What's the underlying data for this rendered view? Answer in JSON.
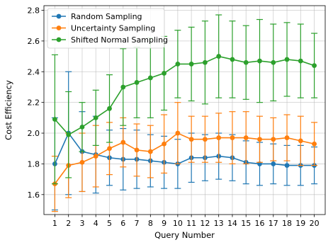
{
  "chart_data": {
    "type": "line",
    "title": "",
    "xlabel": "Query Number",
    "ylabel": "Cost Efficiency",
    "x": [
      1,
      2,
      3,
      4,
      5,
      6,
      7,
      8,
      9,
      10,
      11,
      12,
      13,
      14,
      15,
      16,
      17,
      18,
      19,
      20
    ],
    "xlim": [
      0.2,
      20.8
    ],
    "ylim": [
      1.47,
      2.83
    ],
    "yticks": [
      1.6,
      1.8,
      2.0,
      2.2,
      2.4,
      2.6,
      2.8
    ],
    "ytick_labels": [
      "1.6",
      "1.8",
      "2.0",
      "2.2",
      "2.4",
      "2.6",
      "2.8"
    ],
    "xtick_labels": [
      "1",
      "2",
      "3",
      "4",
      "5",
      "6",
      "7",
      "8",
      "9",
      "10",
      "11",
      "12",
      "13",
      "14",
      "15",
      "16",
      "17",
      "18",
      "19",
      "20"
    ],
    "grid": true,
    "legend_position": "top-left",
    "error_bars": true,
    "series": [
      {
        "name": "Random Sampling",
        "color": "#1f77b4",
        "values": [
          1.8,
          2.0,
          1.88,
          1.86,
          1.84,
          1.83,
          1.83,
          1.82,
          1.81,
          1.8,
          1.84,
          1.84,
          1.85,
          1.84,
          1.81,
          1.8,
          1.8,
          1.79,
          1.79,
          1.79
        ],
        "errors": [
          0.3,
          0.4,
          0.26,
          0.25,
          0.18,
          0.2,
          0.19,
          0.17,
          0.17,
          0.16,
          0.16,
          0.15,
          0.15,
          0.15,
          0.14,
          0.14,
          0.13,
          0.13,
          0.13,
          0.12
        ]
      },
      {
        "name": "Uncertainty Sampling",
        "color": "#ff7f0e",
        "values": [
          1.67,
          1.79,
          1.81,
          1.85,
          1.9,
          1.94,
          1.89,
          1.88,
          1.93,
          2.0,
          1.96,
          1.96,
          1.97,
          1.97,
          1.97,
          1.96,
          1.96,
          1.97,
          1.95,
          1.93
        ],
        "errors": [
          0.18,
          0.21,
          0.19,
          0.2,
          0.17,
          0.16,
          0.17,
          0.17,
          0.19,
          0.2,
          0.15,
          0.15,
          0.16,
          0.17,
          0.17,
          0.15,
          0.14,
          0.15,
          0.16,
          0.14
        ]
      },
      {
        "name": "Shifted Normal Sampling",
        "color": "#2ca02c",
        "values": [
          2.09,
          1.99,
          2.04,
          2.1,
          2.16,
          2.3,
          2.33,
          2.36,
          2.39,
          2.45,
          2.45,
          2.46,
          2.5,
          2.48,
          2.46,
          2.47,
          2.46,
          2.48,
          2.47,
          2.44
        ],
        "errors": [
          0.42,
          0.28,
          0.16,
          0.18,
          0.22,
          0.25,
          0.23,
          0.26,
          0.24,
          0.22,
          0.24,
          0.27,
          0.27,
          0.25,
          0.24,
          0.27,
          0.25,
          0.24,
          0.24,
          0.21
        ]
      }
    ]
  }
}
